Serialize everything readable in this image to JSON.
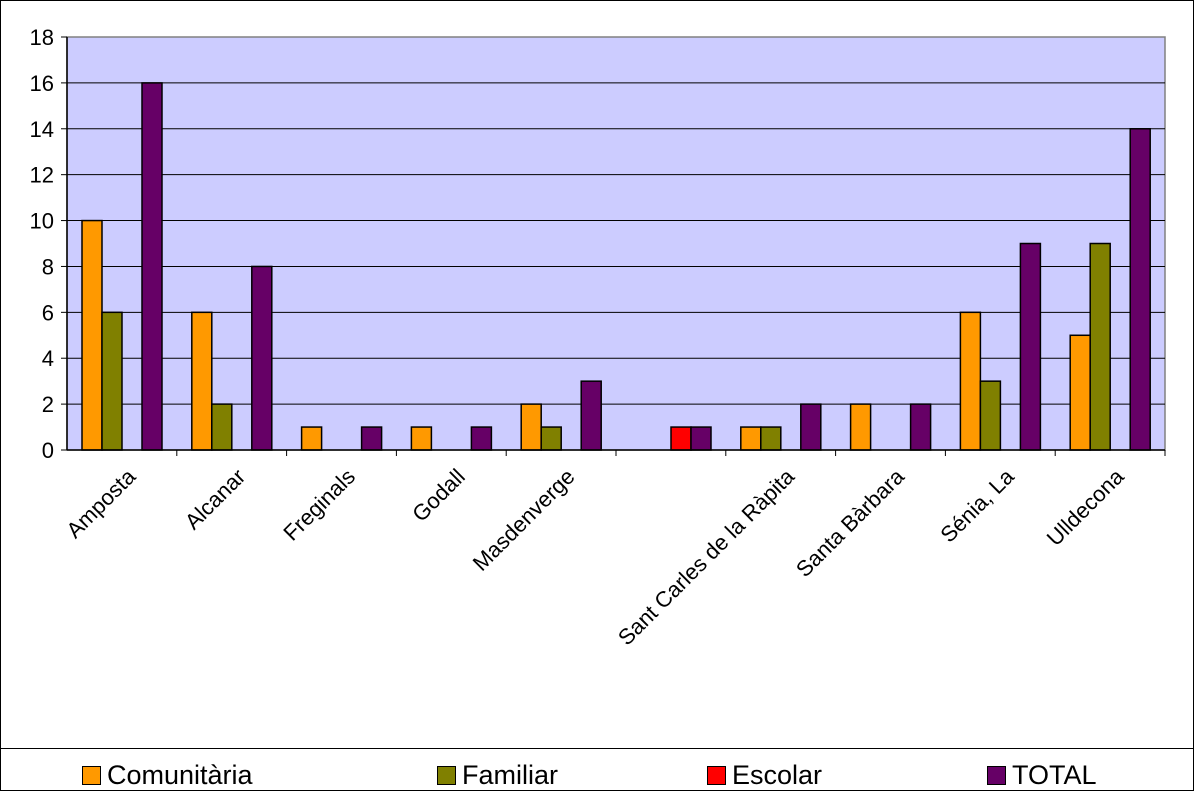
{
  "chart_data": {
    "type": "bar",
    "categories": [
      "Amposta",
      "Alcanar",
      "Freginals",
      "Godall",
      "Masdenverge",
      "",
      "Sant Carles de la Ràpita",
      "Santa Bàrbara",
      "Sénia, La",
      "Ulldecona"
    ],
    "series": [
      {
        "name": "Comunitària",
        "color": "#FF9900",
        "values": [
          10,
          6,
          1,
          1,
          2,
          0,
          1,
          2,
          6,
          5
        ]
      },
      {
        "name": "Familiar",
        "color": "#808000",
        "values": [
          6,
          2,
          0,
          0,
          1,
          0,
          1,
          0,
          3,
          9
        ]
      },
      {
        "name": "Escolar",
        "color": "#FF0000",
        "values": [
          0,
          0,
          0,
          0,
          0,
          1,
          0,
          0,
          0,
          0
        ]
      },
      {
        "name": "TOTAL",
        "color": "#660066",
        "values": [
          16,
          8,
          1,
          1,
          3,
          1,
          2,
          2,
          9,
          14
        ]
      }
    ],
    "ylim": [
      0,
      18
    ],
    "yticks": [
      0,
      2,
      4,
      6,
      8,
      10,
      12,
      14,
      16,
      18
    ],
    "plot_background": "#CCCCFF",
    "grid": true,
    "legend_position": "bottom",
    "title": "",
    "xlabel": "",
    "ylabel": ""
  }
}
